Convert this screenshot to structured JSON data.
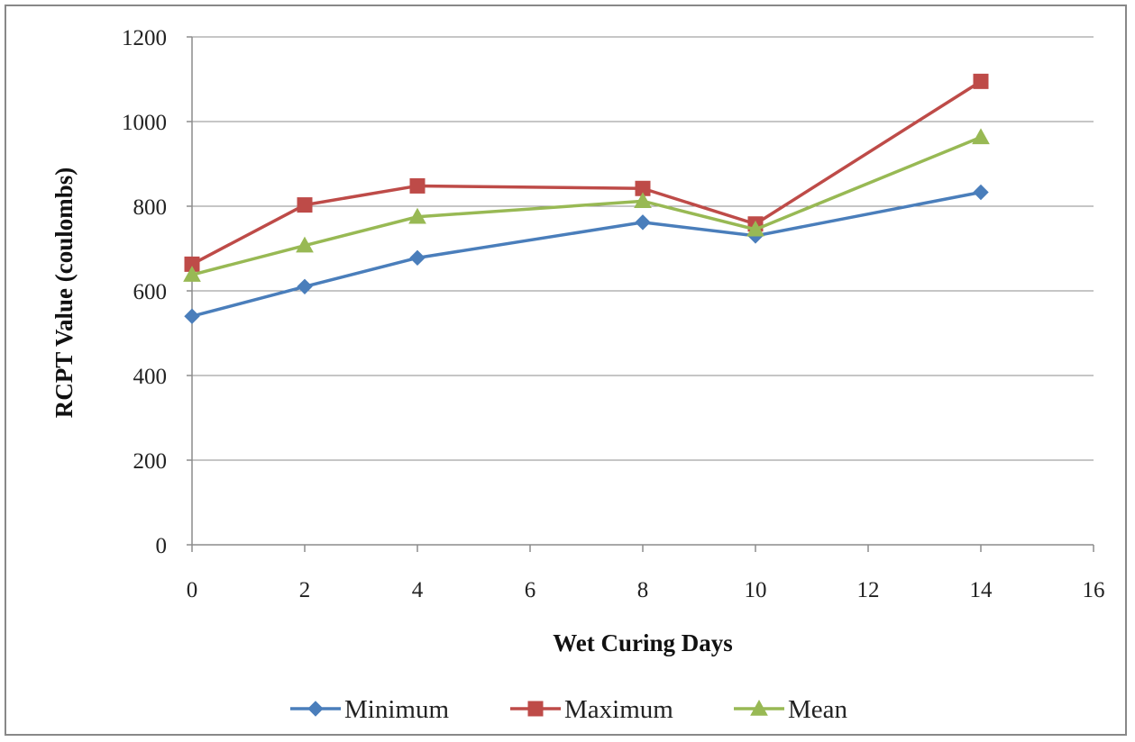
{
  "chart_data": {
    "type": "line",
    "title": "",
    "xlabel": "Wet Curing Days",
    "ylabel": "RCPT Value (coulombs)",
    "xlim": [
      0,
      16
    ],
    "ylim": [
      0,
      1200
    ],
    "x_ticks": [
      "0",
      "2",
      "4",
      "6",
      "8",
      "10",
      "12",
      "14",
      "16"
    ],
    "y_ticks": [
      "0",
      "200",
      "400",
      "600",
      "800",
      "1000",
      "1200"
    ],
    "grid": "horizontal",
    "legend_position": "bottom",
    "x": [
      0,
      2,
      4,
      8,
      10,
      14
    ],
    "series": [
      {
        "name": "Minimum",
        "values": [
          540,
          610,
          678,
          762,
          730,
          833
        ],
        "color": "#4a7ebb",
        "marker": "diamond"
      },
      {
        "name": "Maximum",
        "values": [
          663,
          803,
          848,
          842,
          758,
          1095
        ],
        "color": "#be4b48",
        "marker": "square"
      },
      {
        "name": "Mean",
        "values": [
          638,
          707,
          775,
          812,
          745,
          963
        ],
        "color": "#98b954",
        "marker": "triangle"
      }
    ]
  }
}
